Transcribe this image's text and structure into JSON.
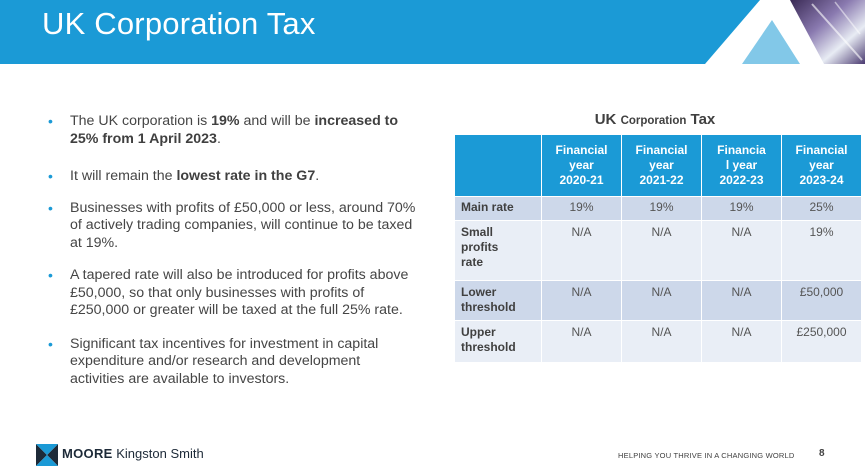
{
  "slide": {
    "title": "UK Corporation Tax",
    "page_number": "8"
  },
  "bullets": {
    "b1": {
      "t1": "The UK corporation is ",
      "t2": "19%",
      "t3": " and will be ",
      "t4": "increased to 25% from 1 April 2023",
      "t5": "."
    },
    "b2": {
      "t1": "It will remain the ",
      "t2": "lowest rate in the G7",
      "t3": "."
    },
    "b3": "Businesses with profits of £50,000 or less, around 70% of actively trading companies, will continue to be taxed at 19%.",
    "b4": "A tapered rate will also be introduced for profits above £50,000, so that only businesses with profits of £250,000 or greater will be taxed at the full 25% rate.",
    "b5": "Significant tax incentives for investment in capital expenditure and/or research and development activities are available to investors."
  },
  "table": {
    "title_a": "UK ",
    "title_b": "Corporation",
    "title_c": " Tax",
    "headers": [
      {
        "l1": "Financial",
        "l2": "year",
        "l3": "2020-21"
      },
      {
        "l1": "Financial",
        "l2": "year",
        "l3": "2021-22"
      },
      {
        "l1": "Financia",
        "l2": "l year",
        "l3": "2022-23"
      },
      {
        "l1": "Financial",
        "l2": "year",
        "l3": "2023-24"
      }
    ],
    "rows": [
      {
        "l1": "Main rate",
        "cells": [
          "19%",
          "19%",
          "19%",
          "25%"
        ]
      },
      {
        "l1": "Small",
        "l2": "profits",
        "l3": "rate",
        "cells": [
          "N/A",
          "N/A",
          "N/A",
          "19%"
        ]
      },
      {
        "l1": "Lower",
        "l2": "threshold",
        "cells": [
          "N/A",
          "N/A",
          "N/A",
          "£50,000"
        ]
      },
      {
        "l1": "Upper",
        "l2": "threshold",
        "cells": [
          "N/A",
          "N/A",
          "N/A",
          "£250,000"
        ]
      }
    ]
  },
  "footer": {
    "brand_bold": "MOORE",
    "brand_rest": "Kingston Smith",
    "tagline": "HELPING YOU THRIVE IN A CHANGING WORLD"
  },
  "colors": {
    "accent": "#1b9ad6",
    "row_dark": "#cdd8ea",
    "row_light": "#e9eef6",
    "brand_navy": "#1d2a38"
  }
}
